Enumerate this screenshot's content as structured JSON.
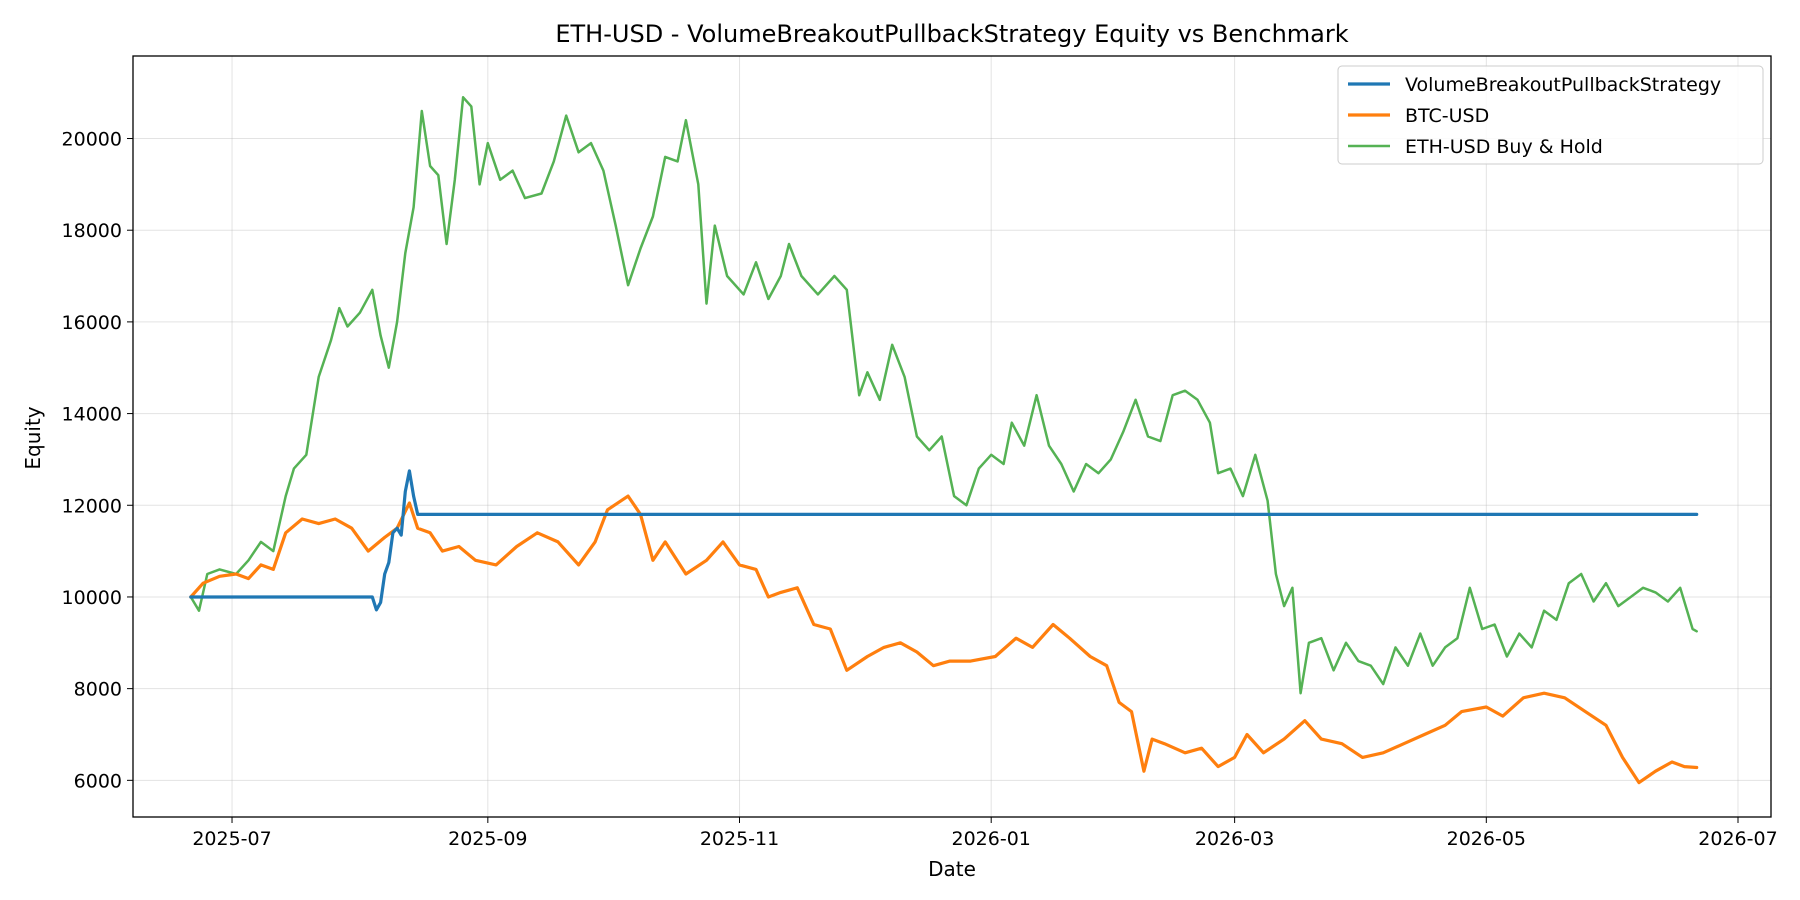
{
  "chart_data": {
    "type": "line",
    "title": "ETH-USD - VolumeBreakoutPullbackStrategy Equity vs Benchmark",
    "xlabel": "Date",
    "ylabel": "Equity",
    "x_range": [
      "2025-06-07",
      "2026-07-09"
    ],
    "ylim": [
      5200,
      21800
    ],
    "x_ticks": [
      "2025-07",
      "2025-09",
      "2025-11",
      "2026-01",
      "2026-03",
      "2026-05",
      "2026-07"
    ],
    "y_ticks": [
      6000,
      8000,
      10000,
      12000,
      14000,
      16000,
      18000,
      20000
    ],
    "grid": true,
    "legend_position": "top-right",
    "series": [
      {
        "name": "VolumeBreakoutPullbackStrategy",
        "color": "#1f77b4",
        "points": [
          [
            "2025-06-21",
            10000
          ],
          [
            "2025-07-10",
            10000
          ],
          [
            "2025-08-01",
            10000
          ],
          [
            "2025-08-04",
            10000
          ],
          [
            "2025-08-05",
            9720
          ],
          [
            "2025-08-06",
            9880
          ],
          [
            "2025-08-07",
            10500
          ],
          [
            "2025-08-08",
            10750
          ],
          [
            "2025-08-09",
            11400
          ],
          [
            "2025-08-10",
            11500
          ],
          [
            "2025-08-11",
            11350
          ],
          [
            "2025-08-12",
            12300
          ],
          [
            "2025-08-13",
            12750
          ],
          [
            "2025-08-14",
            12200
          ],
          [
            "2025-08-15",
            11800
          ],
          [
            "2025-09-15",
            11800
          ],
          [
            "2025-12-01",
            11800
          ],
          [
            "2026-03-01",
            11800
          ],
          [
            "2026-06-21",
            11800
          ]
        ]
      },
      {
        "name": "BTC-USD",
        "color": "#ff7f0e",
        "points": [
          [
            "2025-06-21",
            10000
          ],
          [
            "2025-06-24",
            10300
          ],
          [
            "2025-06-28",
            10450
          ],
          [
            "2025-07-02",
            10500
          ],
          [
            "2025-07-05",
            10400
          ],
          [
            "2025-07-08",
            10700
          ],
          [
            "2025-07-11",
            10600
          ],
          [
            "2025-07-14",
            11400
          ],
          [
            "2025-07-18",
            11700
          ],
          [
            "2025-07-22",
            11600
          ],
          [
            "2025-07-26",
            11700
          ],
          [
            "2025-07-30",
            11500
          ],
          [
            "2025-08-03",
            11000
          ],
          [
            "2025-08-07",
            11300
          ],
          [
            "2025-08-10",
            11500
          ],
          [
            "2025-08-13",
            12050
          ],
          [
            "2025-08-15",
            11500
          ],
          [
            "2025-08-18",
            11400
          ],
          [
            "2025-08-21",
            11000
          ],
          [
            "2025-08-25",
            11100
          ],
          [
            "2025-08-29",
            10800
          ],
          [
            "2025-09-03",
            10700
          ],
          [
            "2025-09-08",
            11100
          ],
          [
            "2025-09-13",
            11400
          ],
          [
            "2025-09-18",
            11200
          ],
          [
            "2025-09-23",
            10700
          ],
          [
            "2025-09-27",
            11200
          ],
          [
            "2025-09-30",
            11900
          ],
          [
            "2025-10-05",
            12200
          ],
          [
            "2025-10-08",
            11800
          ],
          [
            "2025-10-11",
            10800
          ],
          [
            "2025-10-14",
            11200
          ],
          [
            "2025-10-19",
            10500
          ],
          [
            "2025-10-24",
            10800
          ],
          [
            "2025-10-28",
            11200
          ],
          [
            "2025-11-01",
            10700
          ],
          [
            "2025-11-05",
            10600
          ],
          [
            "2025-11-08",
            10000
          ],
          [
            "2025-11-11",
            10100
          ],
          [
            "2025-11-15",
            10200
          ],
          [
            "2025-11-19",
            9400
          ],
          [
            "2025-11-23",
            9300
          ],
          [
            "2025-11-27",
            8400
          ],
          [
            "2025-12-02",
            8700
          ],
          [
            "2025-12-06",
            8900
          ],
          [
            "2025-12-10",
            9000
          ],
          [
            "2025-12-14",
            8800
          ],
          [
            "2025-12-18",
            8500
          ],
          [
            "2025-12-22",
            8600
          ],
          [
            "2025-12-27",
            8600
          ],
          [
            "2026-01-02",
            8700
          ],
          [
            "2026-01-07",
            9100
          ],
          [
            "2026-01-11",
            8900
          ],
          [
            "2026-01-16",
            9400
          ],
          [
            "2026-01-20",
            9100
          ],
          [
            "2026-01-25",
            8700
          ],
          [
            "2026-01-29",
            8500
          ],
          [
            "2026-02-01",
            7700
          ],
          [
            "2026-02-04",
            7500
          ],
          [
            "2026-02-07",
            6200
          ],
          [
            "2026-02-09",
            6900
          ],
          [
            "2026-02-12",
            6800
          ],
          [
            "2026-02-17",
            6600
          ],
          [
            "2026-02-21",
            6700
          ],
          [
            "2026-02-25",
            6300
          ],
          [
            "2026-03-01",
            6500
          ],
          [
            "2026-03-04",
            7000
          ],
          [
            "2026-03-08",
            6600
          ],
          [
            "2026-03-13",
            6900
          ],
          [
            "2026-03-18",
            7300
          ],
          [
            "2026-03-22",
            6900
          ],
          [
            "2026-03-27",
            6800
          ],
          [
            "2026-04-01",
            6500
          ],
          [
            "2026-04-06",
            6600
          ],
          [
            "2026-04-11",
            6800
          ],
          [
            "2026-04-16",
            7000
          ],
          [
            "2026-04-21",
            7200
          ],
          [
            "2026-04-25",
            7500
          ],
          [
            "2026-05-01",
            7600
          ],
          [
            "2026-05-05",
            7400
          ],
          [
            "2026-05-10",
            7800
          ],
          [
            "2026-05-15",
            7900
          ],
          [
            "2026-05-20",
            7800
          ],
          [
            "2026-05-25",
            7500
          ],
          [
            "2026-05-30",
            7200
          ],
          [
            "2026-06-03",
            6500
          ],
          [
            "2026-06-07",
            5950
          ],
          [
            "2026-06-11",
            6200
          ],
          [
            "2026-06-15",
            6400
          ],
          [
            "2026-06-18",
            6300
          ],
          [
            "2026-06-21",
            6280
          ]
        ]
      },
      {
        "name": "ETH-USD Buy & Hold",
        "color": "#55b254",
        "points": [
          [
            "2025-06-21",
            10000
          ],
          [
            "2025-06-23",
            9700
          ],
          [
            "2025-06-25",
            10500
          ],
          [
            "2025-06-28",
            10600
          ],
          [
            "2025-07-02",
            10500
          ],
          [
            "2025-07-05",
            10800
          ],
          [
            "2025-07-08",
            11200
          ],
          [
            "2025-07-11",
            11000
          ],
          [
            "2025-07-14",
            12200
          ],
          [
            "2025-07-16",
            12800
          ],
          [
            "2025-07-19",
            13100
          ],
          [
            "2025-07-22",
            14800
          ],
          [
            "2025-07-25",
            15600
          ],
          [
            "2025-07-27",
            16300
          ],
          [
            "2025-07-29",
            15900
          ],
          [
            "2025-08-01",
            16200
          ],
          [
            "2025-08-04",
            16700
          ],
          [
            "2025-08-06",
            15700
          ],
          [
            "2025-08-08",
            15000
          ],
          [
            "2025-08-10",
            16000
          ],
          [
            "2025-08-12",
            17500
          ],
          [
            "2025-08-14",
            18500
          ],
          [
            "2025-08-16",
            20600
          ],
          [
            "2025-08-18",
            19400
          ],
          [
            "2025-08-20",
            19200
          ],
          [
            "2025-08-22",
            17700
          ],
          [
            "2025-08-24",
            19100
          ],
          [
            "2025-08-26",
            20900
          ],
          [
            "2025-08-28",
            20700
          ],
          [
            "2025-08-30",
            19000
          ],
          [
            "2025-09-01",
            19900
          ],
          [
            "2025-09-04",
            19100
          ],
          [
            "2025-09-07",
            19300
          ],
          [
            "2025-09-10",
            18700
          ],
          [
            "2025-09-14",
            18800
          ],
          [
            "2025-09-17",
            19500
          ],
          [
            "2025-09-20",
            20500
          ],
          [
            "2025-09-23",
            19700
          ],
          [
            "2025-09-26",
            19900
          ],
          [
            "2025-09-29",
            19300
          ],
          [
            "2025-10-02",
            18100
          ],
          [
            "2025-10-05",
            16800
          ],
          [
            "2025-10-08",
            17600
          ],
          [
            "2025-10-11",
            18300
          ],
          [
            "2025-10-14",
            19600
          ],
          [
            "2025-10-17",
            19500
          ],
          [
            "2025-10-19",
            20400
          ],
          [
            "2025-10-22",
            19000
          ],
          [
            "2025-10-24",
            16400
          ],
          [
            "2025-10-26",
            18100
          ],
          [
            "2025-10-29",
            17000
          ],
          [
            "2025-11-02",
            16600
          ],
          [
            "2025-11-05",
            17300
          ],
          [
            "2025-11-08",
            16500
          ],
          [
            "2025-11-11",
            17000
          ],
          [
            "2025-11-13",
            17700
          ],
          [
            "2025-11-16",
            17000
          ],
          [
            "2025-11-20",
            16600
          ],
          [
            "2025-11-24",
            17000
          ],
          [
            "2025-11-27",
            16700
          ],
          [
            "2025-11-30",
            14400
          ],
          [
            "2025-12-02",
            14900
          ],
          [
            "2025-12-05",
            14300
          ],
          [
            "2025-12-08",
            15500
          ],
          [
            "2025-12-11",
            14800
          ],
          [
            "2025-12-14",
            13500
          ],
          [
            "2025-12-17",
            13200
          ],
          [
            "2025-12-20",
            13500
          ],
          [
            "2025-12-23",
            12200
          ],
          [
            "2025-12-26",
            12000
          ],
          [
            "2025-12-29",
            12800
          ],
          [
            "2026-01-01",
            13100
          ],
          [
            "2026-01-04",
            12900
          ],
          [
            "2026-01-06",
            13800
          ],
          [
            "2026-01-09",
            13300
          ],
          [
            "2026-01-12",
            14400
          ],
          [
            "2026-01-15",
            13300
          ],
          [
            "2026-01-18",
            12900
          ],
          [
            "2026-01-21",
            12300
          ],
          [
            "2026-01-24",
            12900
          ],
          [
            "2026-01-27",
            12700
          ],
          [
            "2026-01-30",
            13000
          ],
          [
            "2026-02-02",
            13600
          ],
          [
            "2026-02-05",
            14300
          ],
          [
            "2026-02-08",
            13500
          ],
          [
            "2026-02-11",
            13400
          ],
          [
            "2026-02-14",
            14400
          ],
          [
            "2026-02-17",
            14500
          ],
          [
            "2026-02-20",
            14300
          ],
          [
            "2026-02-23",
            13800
          ],
          [
            "2026-02-25",
            12700
          ],
          [
            "2026-02-28",
            12800
          ],
          [
            "2026-03-03",
            12200
          ],
          [
            "2026-03-06",
            13100
          ],
          [
            "2026-03-09",
            12100
          ],
          [
            "2026-03-11",
            10500
          ],
          [
            "2026-03-13",
            9800
          ],
          [
            "2026-03-15",
            10200
          ],
          [
            "2026-03-17",
            7900
          ],
          [
            "2026-03-19",
            9000
          ],
          [
            "2026-03-22",
            9100
          ],
          [
            "2026-03-25",
            8400
          ],
          [
            "2026-03-28",
            9000
          ],
          [
            "2026-03-31",
            8600
          ],
          [
            "2026-04-03",
            8500
          ],
          [
            "2026-04-06",
            8100
          ],
          [
            "2026-04-09",
            8900
          ],
          [
            "2026-04-12",
            8500
          ],
          [
            "2026-04-15",
            9200
          ],
          [
            "2026-04-18",
            8500
          ],
          [
            "2026-04-21",
            8900
          ],
          [
            "2026-04-24",
            9100
          ],
          [
            "2026-04-27",
            10200
          ],
          [
            "2026-04-30",
            9300
          ],
          [
            "2026-05-03",
            9400
          ],
          [
            "2026-05-06",
            8700
          ],
          [
            "2026-05-09",
            9200
          ],
          [
            "2026-05-12",
            8900
          ],
          [
            "2026-05-15",
            9700
          ],
          [
            "2026-05-18",
            9500
          ],
          [
            "2026-05-21",
            10300
          ],
          [
            "2026-05-24",
            10500
          ],
          [
            "2026-05-27",
            9900
          ],
          [
            "2026-05-30",
            10300
          ],
          [
            "2026-06-02",
            9800
          ],
          [
            "2026-06-05",
            10000
          ],
          [
            "2026-06-08",
            10200
          ],
          [
            "2026-06-11",
            10100
          ],
          [
            "2026-06-14",
            9900
          ],
          [
            "2026-06-17",
            10200
          ],
          [
            "2026-06-20",
            9300
          ],
          [
            "2026-06-21",
            9250
          ]
        ]
      }
    ]
  }
}
